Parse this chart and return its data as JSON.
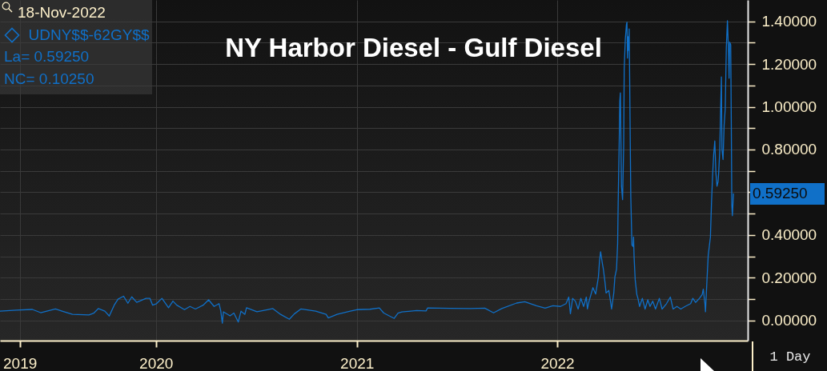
{
  "chart_data": {
    "type": "line",
    "title": "NY Harbor Diesel - Gulf Diesel",
    "annotations": [
      "18-Nov-2022",
      "La= 0.59250",
      "NC= 0.10250",
      "0.59250",
      "1 Day"
    ],
    "x": [
      "2019-03-23",
      "2019-04-22",
      "2019-05-21",
      "2019-06-05",
      "2019-07-02",
      "2019-07-14",
      "2019-08-02",
      "2019-09-01",
      "2019-09-10",
      "2019-09-18",
      "2019-09-30",
      "2019-10-08",
      "2019-10-17",
      "2019-10-24",
      "2019-11-03",
      "2019-11-11",
      "2019-11-18",
      "2019-11-27",
      "2019-12-14",
      "2019-12-21",
      "2019-12-26",
      "2020-01-02",
      "2020-01-12",
      "2020-01-24",
      "2020-02-01",
      "2020-02-08",
      "2020-02-22",
      "2020-03-03",
      "2020-03-13",
      "2020-03-27",
      "2020-04-06",
      "2020-04-16",
      "2020-04-25",
      "2020-04-28",
      "2020-05-01",
      "2020-05-03",
      "2020-05-15",
      "2020-05-22",
      "2020-05-30",
      "2020-06-04",
      "2020-06-11",
      "2020-06-14",
      "2020-07-03",
      "2020-07-22",
      "2020-08-01",
      "2020-08-15",
      "2020-08-31",
      "2020-09-09",
      "2020-09-21",
      "2020-10-18",
      "2020-11-06",
      "2020-11-10",
      "2020-11-26",
      "2020-12-20",
      "2021-01-01",
      "2021-01-25",
      "2021-02-11",
      "2021-02-19",
      "2021-03-10",
      "2021-03-17",
      "2021-03-24",
      "2021-04-20",
      "2021-05-07",
      "2021-05-10",
      "2021-06-20",
      "2021-07-27",
      "2021-08-22",
      "2021-09-07",
      "2021-09-22",
      "2021-10-19",
      "2021-11-03",
      "2021-11-24",
      "2021-12-10",
      "2021-12-24",
      "2022-01-07",
      "2022-01-17",
      "2022-01-22",
      "2022-01-25",
      "2022-01-29",
      "2022-02-03",
      "2022-02-08",
      "2022-02-13",
      "2022-02-18",
      "2022-02-23",
      "2022-02-25",
      "2022-02-28",
      "2022-03-07",
      "2022-03-12",
      "2022-03-17",
      "2022-03-19",
      "2022-03-21",
      "2022-03-24",
      "2022-03-26",
      "2022-03-29",
      "2022-03-31",
      "2022-04-05",
      "2022-04-08",
      "2022-04-10",
      "2022-04-14",
      "2022-04-16",
      "2022-04-19",
      "2022-04-21",
      "2022-04-22",
      "2022-04-24",
      "2022-04-25",
      "2022-04-26",
      "2022-04-28",
      "2022-04-30",
      "2022-05-02",
      "2022-05-03",
      "2022-05-05",
      "2022-05-07",
      "2022-05-08",
      "2022-05-09",
      "2022-05-10",
      "2022-05-11",
      "2022-05-12",
      "2022-05-13",
      "2022-05-14",
      "2022-05-15",
      "2022-05-17",
      "2022-05-19",
      "2022-05-20",
      "2022-05-21",
      "2022-05-23",
      "2022-05-26",
      "2022-05-28",
      "2022-05-31",
      "2022-06-05",
      "2022-06-10",
      "2022-06-15",
      "2022-06-19",
      "2022-06-24",
      "2022-06-29",
      "2022-07-06",
      "2022-07-11",
      "2022-07-19",
      "2022-07-26",
      "2022-07-31",
      "2022-08-07",
      "2022-08-14",
      "2022-08-22",
      "2022-09-01",
      "2022-09-05",
      "2022-09-10",
      "2022-09-17",
      "2022-09-22",
      "2022-09-24",
      "2022-09-27",
      "2022-09-28",
      "2022-10-01",
      "2022-10-03",
      "2022-10-07",
      "2022-10-09",
      "2022-10-11",
      "2022-10-13",
      "2022-10-15",
      "2022-10-17",
      "2022-10-19",
      "2022-10-21",
      "2022-10-22",
      "2022-10-24",
      "2022-10-26",
      "2022-10-27",
      "2022-10-28",
      "2022-10-30",
      "2022-11-01",
      "2022-11-03",
      "2022-11-05",
      "2022-11-07",
      "2022-11-09",
      "2022-11-10",
      "2022-11-11",
      "2022-11-13",
      "2022-11-14",
      "2022-11-15",
      "2022-11-16",
      "2022-11-18"
    ],
    "series": [
      {
        "name": "UDNY$$-62GY$$",
        "color": "#1070c8",
        "values": [
          0.043,
          0.048,
          0.051,
          0.036,
          0.053,
          0.043,
          0.028,
          0.025,
          0.034,
          0.055,
          0.043,
          0.02,
          0.071,
          0.099,
          0.113,
          0.08,
          0.11,
          0.084,
          0.103,
          0.103,
          0.071,
          0.078,
          0.103,
          0.059,
          0.09,
          0.071,
          0.05,
          0.065,
          0.053,
          0.071,
          0.096,
          0.065,
          0.078,
          0.046,
          -0.013,
          0.04,
          0.021,
          0.034,
          -0.008,
          0.043,
          0.028,
          0.059,
          0.04,
          0.05,
          0.055,
          0.028,
          0.005,
          0.03,
          0.053,
          0.043,
          0.028,
          0.011,
          0.028,
          0.043,
          0.05,
          0.052,
          0.058,
          0.034,
          0.009,
          0.034,
          0.039,
          0.046,
          0.044,
          0.058,
          0.056,
          0.055,
          0.057,
          0.035,
          0.055,
          0.081,
          0.087,
          0.068,
          0.057,
          0.068,
          0.065,
          0.078,
          0.109,
          0.031,
          0.103,
          0.09,
          0.053,
          0.103,
          0.065,
          0.109,
          0.053,
          0.09,
          0.153,
          0.123,
          0.203,
          0.278,
          0.321,
          0.27,
          0.24,
          0.178,
          0.128,
          0.14,
          0.09,
          0.053,
          0.128,
          0.203,
          0.24,
          0.359,
          0.55,
          0.853,
          1.028,
          1.065,
          0.628,
          0.565,
          0.815,
          1.178,
          1.315,
          1.384,
          1.396,
          1.228,
          1.328,
          1.265,
          1.365,
          1.109,
          0.828,
          0.578,
          0.353,
          0.346,
          0.39,
          0.296,
          0.19,
          0.121,
          0.103,
          0.065,
          0.103,
          0.053,
          0.096,
          0.065,
          0.09,
          0.053,
          0.103,
          0.053,
          0.078,
          0.109,
          0.053,
          0.065,
          0.053,
          0.065,
          0.078,
          0.103,
          0.084,
          0.103,
          0.121,
          0.146,
          0.078,
          0.04,
          0.203,
          0.303,
          0.39,
          0.553,
          0.678,
          0.778,
          0.84,
          0.69,
          0.628,
          0.65,
          0.69,
          0.79,
          1.028,
          1.14,
          0.803,
          0.753,
          0.915,
          0.99,
          1.278,
          1.403,
          1.253,
          1.134,
          1.303,
          1.29,
          0.934,
          0.54,
          0.49,
          0.5925
        ]
      }
    ],
    "xlim": [
      "2019-03-23",
      "2022-12-14"
    ],
    "xticks": [
      {
        "value": "2019-04-28",
        "label": "2019"
      },
      {
        "value": "2020",
        "label": "2020"
      },
      {
        "value": "2021",
        "label": "2021"
      },
      {
        "value": "2022",
        "label": "2022"
      }
    ],
    "ylim": [
      -0.095,
      1.5
    ],
    "yticks": [
      {
        "value": 0,
        "label": "0.00000"
      },
      {
        "value": 0.1,
        "label": null
      },
      {
        "value": 0.2,
        "label": "0.20000"
      },
      {
        "value": 0.3,
        "label": null
      },
      {
        "value": 0.4,
        "label": "0.40000"
      },
      {
        "value": 0.5,
        "label": null
      },
      {
        "value": 0.6,
        "label": null
      },
      {
        "value": 0.7,
        "label": null
      },
      {
        "value": 0.8,
        "label": "0.80000"
      },
      {
        "value": 0.9,
        "label": null
      },
      {
        "value": 1.0,
        "label": "1.00000"
      },
      {
        "value": 1.1,
        "label": null
      },
      {
        "value": 1.2,
        "label": "1.20000"
      },
      {
        "value": 1.3,
        "label": null
      },
      {
        "value": 1.4,
        "label": "1.40000"
      }
    ],
    "grid": true,
    "legend": "top left"
  }
}
